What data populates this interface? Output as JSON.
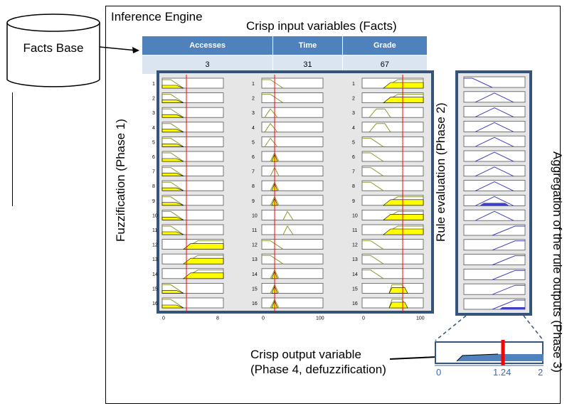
{
  "engine": {
    "title": "Inference Engine"
  },
  "facts_base": {
    "label": "Facts Base"
  },
  "crisp_input": {
    "title": "Crisp input variables (Facts)",
    "columns": [
      "Accesses",
      "Time",
      "Grade"
    ],
    "values": [
      "3",
      "31",
      "67"
    ]
  },
  "phases": {
    "fuzzification": "Fuzzification (Phase 1)",
    "rule_evaluation": "Rule evaluation (Phase 2)",
    "aggregation": "Aggregation of the rule outputs (Phase 3)"
  },
  "fuzzy_axes": {
    "accesses": {
      "min": "0",
      "max": "8"
    },
    "time": {
      "min": "0",
      "max": "100"
    },
    "grade": {
      "min": "0",
      "max": "100"
    }
  },
  "rule_numbers": [
    "1",
    "2",
    "3",
    "4",
    "5",
    "6",
    "7",
    "8",
    "9",
    "10",
    "11",
    "12",
    "13",
    "14",
    "15",
    "16"
  ],
  "crisp_output": {
    "line1": "Crisp output variable",
    "line2": "(Phase 4, defuzzification)",
    "axis_min": "0",
    "axis_value": "1.24",
    "axis_max": "2"
  },
  "colors": {
    "header_blue": "#4f81bd",
    "cell_blue": "#dbe5f1",
    "panel_border": "#34547c",
    "fill_yellow": "#ffff00",
    "marker_red": "#ff0000",
    "rule_line": "#4040c0"
  }
}
